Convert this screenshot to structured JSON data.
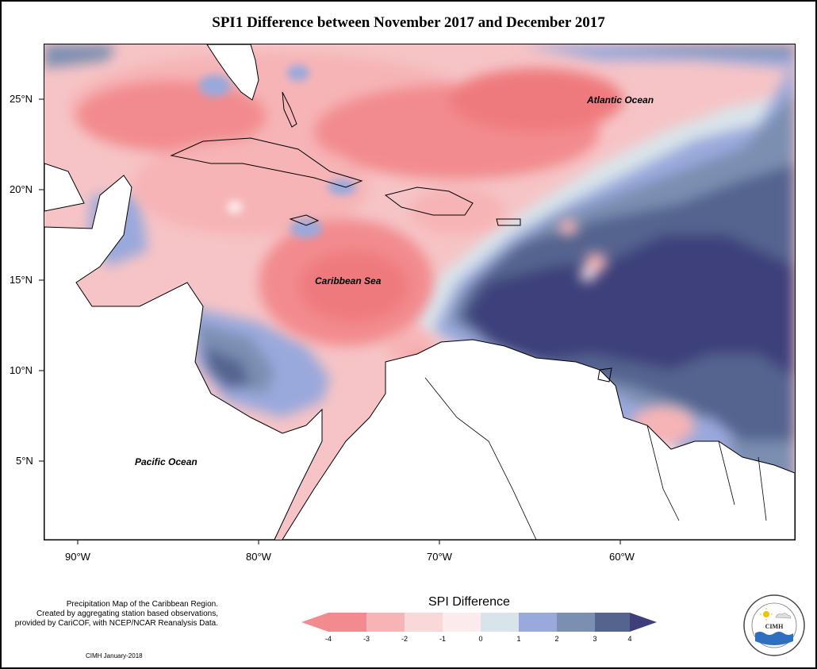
{
  "title": "SPI1 Difference between November 2017 and December 2017",
  "map": {
    "region": "Caribbean",
    "lat_ticks": [
      "25°N",
      "20°N",
      "15°N",
      "10°N",
      "5°N"
    ],
    "lon_ticks": [
      "90°W",
      "80°W",
      "70°W",
      "60°W"
    ],
    "places": {
      "atlantic": "Atlantic Ocean",
      "caribbean": "Caribbean Sea",
      "pacific": "Pacific Ocean"
    }
  },
  "legend": {
    "title": "SPI Difference",
    "ticks": [
      "-4",
      "-3",
      "-2",
      "-1",
      "0",
      "1",
      "2",
      "3",
      "4"
    ],
    "colors": [
      "#f28b8f",
      "#f6b4b6",
      "#f9d8da",
      "#fcebec",
      "#d9e4ea",
      "#9aa9dc",
      "#7b8fb1",
      "#55638f",
      "#3c3f7a"
    ]
  },
  "footer": {
    "line1": "Precipitation Map of the Caribbean Region.",
    "line2": "Created by aggregating station based observations,",
    "line3": "provided by CariCOF, with NCEP/NCAR Reanalysis Data.",
    "credit": "CIMH January-2018"
  },
  "logo": {
    "text": "CIMH"
  }
}
